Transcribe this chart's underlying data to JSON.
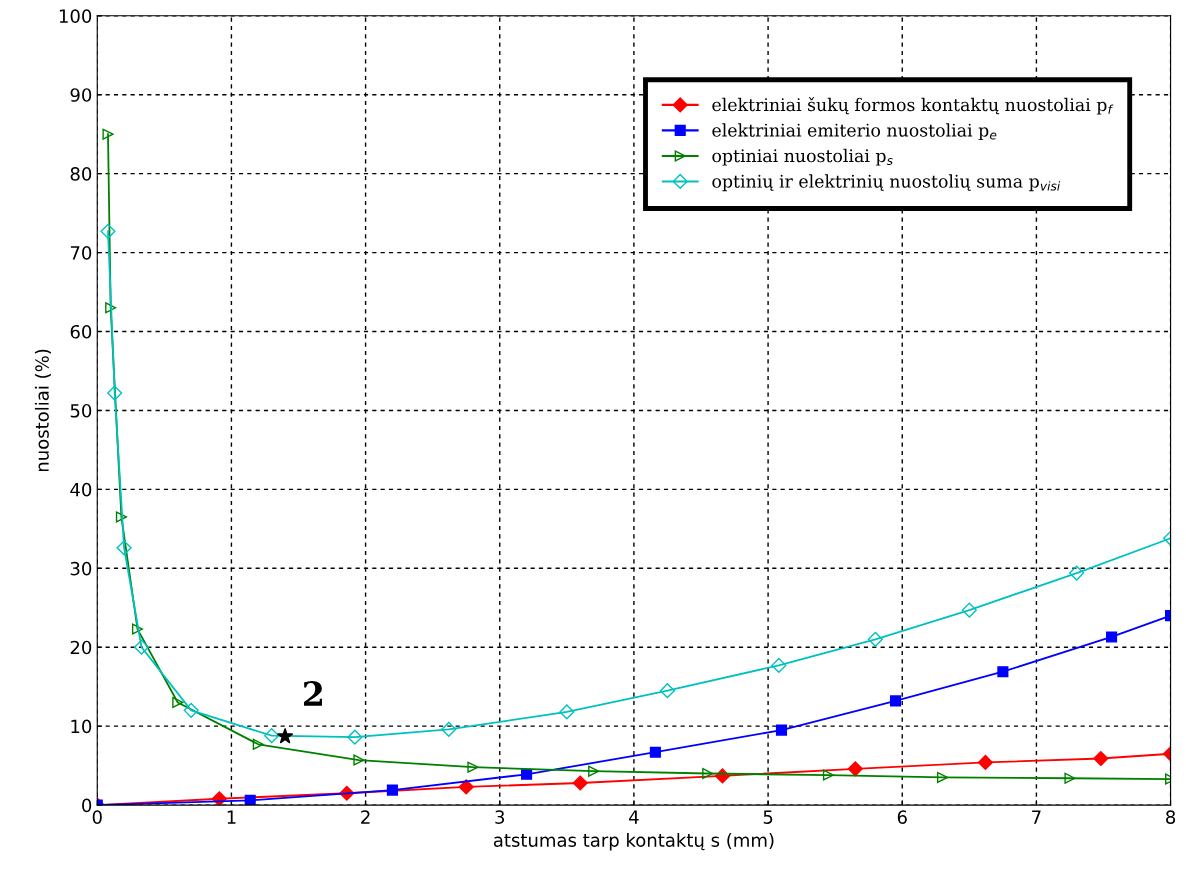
{
  "chart_data": {
    "type": "line",
    "xlabel": "atstumas tarp kontaktų s (mm)",
    "ylabel": "nuostoliai (%)",
    "xlim": [
      0,
      8
    ],
    "ylim": [
      0,
      100
    ],
    "xticks": [
      0,
      1,
      2,
      3,
      4,
      5,
      6,
      7,
      8
    ],
    "yticks": [
      0,
      10,
      20,
      30,
      40,
      50,
      60,
      70,
      80,
      90,
      100
    ],
    "grid": true,
    "legend": "top right",
    "series": [
      {
        "name": "elektriniai šukų formos kontaktų nuostoliai p$_{f}$",
        "color": "#ff0000",
        "marker": "diamond",
        "x": [
          0,
          0.91,
          1.86,
          2.75,
          3.6,
          4.66,
          5.65,
          6.62,
          7.48,
          8
        ],
        "values": [
          0,
          0.8,
          1.5,
          2.3,
          2.8,
          3.7,
          4.6,
          5.4,
          5.9,
          6.5
        ]
      },
      {
        "name": "elektriniai emiterio nuostoliai p$_{e}$",
        "color": "#0000ff",
        "marker": "square",
        "x": [
          0,
          1.14,
          2.2,
          3.2,
          4.16,
          5.1,
          5.95,
          6.75,
          7.56,
          8
        ],
        "values": [
          0,
          0.6,
          1.9,
          3.9,
          6.7,
          9.5,
          13.2,
          16.9,
          21.3,
          24
        ]
      },
      {
        "name": "optiniai nuostoliai p$_{s}$",
        "color": "#008000",
        "marker": "triangle",
        "x": [
          0.08,
          0.1,
          0.18,
          0.3,
          0.6,
          1.2,
          1.95,
          2.8,
          3.7,
          4.55,
          5.45,
          6.3,
          7.25,
          8
        ],
        "values": [
          85,
          63,
          36.5,
          22.3,
          13,
          7.7,
          5.7,
          4.8,
          4.3,
          4,
          3.8,
          3.5,
          3.4,
          3.3
        ]
      },
      {
        "name": "optinių ir elektrinių nuostolių suma p$_{visi}$",
        "color": "#00c0c0",
        "marker": "diamond",
        "x": [
          0.08,
          0.13,
          0.2,
          0.33,
          0.7,
          1.3,
          1.92,
          2.62,
          3.5,
          4.25,
          5.08,
          5.8,
          6.5,
          7.3,
          8
        ],
        "values": [
          72.7,
          52.2,
          32.6,
          20,
          12,
          8.8,
          8.6,
          9.6,
          11.8,
          14.5,
          17.7,
          21,
          24.7,
          29.4,
          33.8
        ]
      },
      {
        "type": "scatter",
        "color": "#000000",
        "marker": "star",
        "x": [
          1.4
        ],
        "values": [
          8.7
        ]
      }
    ],
    "annotations": [
      {
        "text": "2",
        "x": 1.4,
        "y": 8.7
      }
    ]
  }
}
